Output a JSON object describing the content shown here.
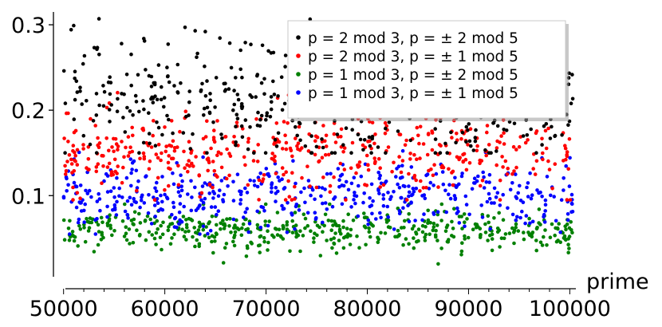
{
  "chart_data": {
    "type": "scatter",
    "title": "",
    "xlabel": "prime",
    "ylabel": "",
    "xlim": [
      49000,
      100600
    ],
    "ylim": [
      0.005,
      0.315
    ],
    "x_ticks": [
      50000,
      60000,
      70000,
      80000,
      90000,
      100000
    ],
    "x_tick_labels": [
      "50000",
      "60000",
      "70000",
      "80000",
      "90000",
      "100000"
    ],
    "y_ticks": [
      0.1,
      0.2,
      0.3
    ],
    "y_tick_labels": [
      "0.1",
      "0.2",
      "0.3"
    ],
    "grid": false,
    "legend_position": "top-right",
    "series": [
      {
        "name": "p = 2 mod 3, p = ± 2 mod 5",
        "color": "#000000",
        "band": {
          "center": 0.215,
          "spread": 0.035,
          "min": 0.15,
          "max": 0.31
        },
        "count": 480,
        "points": [
          {
            "x": 51000,
            "y": 0.299
          },
          {
            "x": 53500,
            "y": 0.307
          },
          {
            "x": 58000,
            "y": 0.281
          },
          {
            "x": 62000,
            "y": 0.297
          },
          {
            "x": 63000,
            "y": 0.293
          },
          {
            "x": 64000,
            "y": 0.292
          },
          {
            "x": 68500,
            "y": 0.277
          },
          {
            "x": 70500,
            "y": 0.267
          },
          {
            "x": 73500,
            "y": 0.295
          },
          {
            "x": 76500,
            "y": 0.287
          }
        ]
      },
      {
        "name": "p = 2 mod 3, p = ± 1 mod 5",
        "color": "#ff0000",
        "band": {
          "center": 0.15,
          "spread": 0.025,
          "min": 0.095,
          "max": 0.225
        },
        "count": 480,
        "points": []
      },
      {
        "name": "p = 1 mod 3, p = ± 2 mod 5",
        "color": "#008000",
        "band": {
          "center": 0.06,
          "spread": 0.012,
          "min": 0.02,
          "max": 0.09
        },
        "count": 480,
        "points": [
          {
            "x": 87000,
            "y": 0.02
          }
        ]
      },
      {
        "name": "p = 1 mod 3, p = ± 1 mod 5",
        "color": "#0000ff",
        "band": {
          "center": 0.1,
          "spread": 0.02,
          "min": 0.055,
          "max": 0.155
        },
        "count": 480,
        "points": []
      }
    ]
  }
}
